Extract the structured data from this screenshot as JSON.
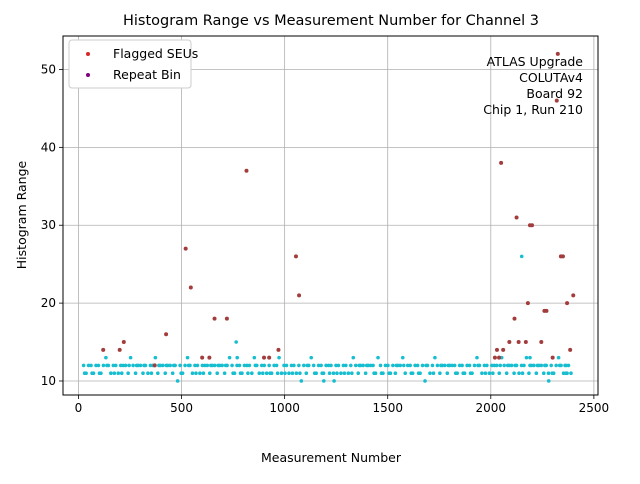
{
  "chart_data": {
    "type": "scatter",
    "title": "Histogram Range vs Measurement Number for Channel 3",
    "xlabel": "Measurement Number",
    "ylabel": "Histogram Range",
    "xlim": [
      -75,
      2520
    ],
    "ylim": [
      8.2,
      54.3
    ],
    "xticks": [
      0,
      500,
      1000,
      1500,
      2000,
      2500
    ],
    "yticks": [
      10,
      20,
      30,
      40,
      50
    ],
    "grid": true,
    "legend_position": "upper-left",
    "annotation_lines": [
      "ATLAS Upgrade",
      "COLUTAv4",
      "Board 92",
      "Chip 1, Run 210"
    ],
    "colors": {
      "normal": "#17becf",
      "flagged": "#d62728",
      "repeat": "#800080",
      "overlap": "#a33c3c"
    },
    "series": [
      {
        "name": "Flagged SEUs",
        "color": "#d62728",
        "points": [
          [
            120,
            14
          ],
          [
            200,
            14
          ],
          [
            220,
            15
          ],
          [
            370,
            12
          ],
          [
            425,
            16
          ],
          [
            520,
            27
          ],
          [
            545,
            22
          ],
          [
            600,
            13
          ],
          [
            635,
            13
          ],
          [
            660,
            18
          ],
          [
            720,
            18
          ],
          [
            815,
            37
          ],
          [
            900,
            13
          ],
          [
            925,
            13
          ],
          [
            970,
            14
          ],
          [
            1055,
            26
          ],
          [
            1070,
            21
          ],
          [
            2020,
            13
          ],
          [
            2030,
            14
          ],
          [
            2040,
            13
          ],
          [
            2050,
            38
          ],
          [
            2060,
            14
          ],
          [
            2090,
            15
          ],
          [
            2115,
            18
          ],
          [
            2125,
            31
          ],
          [
            2135,
            15
          ],
          [
            2170,
            15
          ],
          [
            2180,
            20
          ],
          [
            2190,
            30
          ],
          [
            2200,
            30
          ],
          [
            2245,
            15
          ],
          [
            2260,
            19
          ],
          [
            2270,
            19
          ],
          [
            2300,
            13
          ],
          [
            2320,
            46
          ],
          [
            2325,
            52
          ],
          [
            2340,
            26
          ],
          [
            2350,
            26
          ],
          [
            2370,
            20
          ],
          [
            2385,
            14
          ],
          [
            2400,
            21
          ]
        ]
      },
      {
        "name": "Repeat Bin",
        "color": "#800080",
        "points": []
      }
    ],
    "baseline_series": {
      "x_start": 25,
      "x_end": 2400,
      "x_step": 12,
      "levels": [
        10,
        11,
        12,
        13
      ],
      "pattern": [
        12,
        11,
        12,
        12,
        11,
        12,
        12,
        11,
        12,
        13,
        12,
        11,
        12,
        12,
        11,
        12,
        12,
        12,
        11,
        13,
        12,
        11,
        12,
        12,
        11,
        12,
        11,
        12,
        12,
        13,
        11,
        12,
        12,
        11,
        12,
        12,
        11,
        12,
        10,
        12,
        11,
        12,
        13,
        12,
        11,
        12,
        12,
        11,
        12,
        12
      ]
    }
  }
}
